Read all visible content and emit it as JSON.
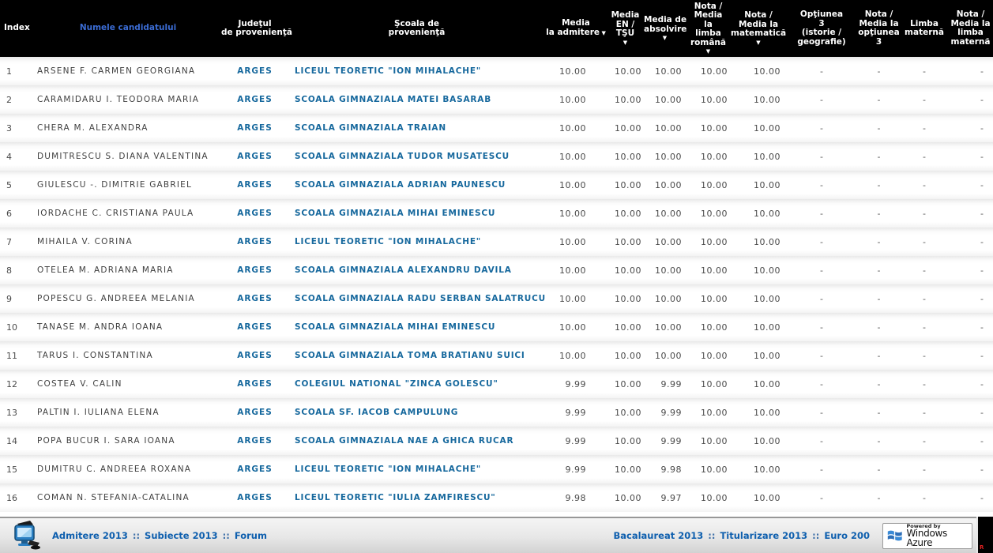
{
  "colors": {
    "header_bg": "#000000",
    "header_text": "#ffffff",
    "name_link": "#3b6cd4",
    "data_link": "#16689d",
    "footer_link": "#0e5fae",
    "row_text": "#4a4a4a"
  },
  "table": {
    "columns": [
      {
        "key": "index",
        "label": "Index",
        "lines": [
          "Index"
        ],
        "arrow": null,
        "link": false,
        "sortable": false
      },
      {
        "key": "name",
        "label": "Numele candidatului",
        "lines": [
          "Numele candidatului"
        ],
        "arrow": null,
        "link": true,
        "sortable": true
      },
      {
        "key": "county",
        "label": "Judeţul de provenienţă",
        "lines": [
          "Judeţul",
          "de provenienţă"
        ],
        "arrow": null,
        "link": false,
        "sortable": false
      },
      {
        "key": "school",
        "label": "Şcoala de provenienţă",
        "lines": [
          "Şcoala de",
          "provenienţă"
        ],
        "arrow": null,
        "link": false,
        "sortable": false
      },
      {
        "key": "media_admitere",
        "label": "Media la admitere",
        "lines": [
          "Media",
          "la admitere"
        ],
        "arrow": "inline",
        "link": false,
        "sortable": true
      },
      {
        "key": "media_en",
        "label": "Media EN / TŞU",
        "lines": [
          "Media",
          "EN /",
          "TŞU"
        ],
        "arrow": "below",
        "link": false,
        "sortable": true
      },
      {
        "key": "media_absolvire",
        "label": "Media de absolvire",
        "lines": [
          "Media de",
          "absolvire"
        ],
        "arrow": "below",
        "link": false,
        "sortable": true
      },
      {
        "key": "nota_romana",
        "label": "Nota / Media la limba română",
        "lines": [
          "Nota /",
          "Media",
          "la",
          "limba",
          "română"
        ],
        "arrow": "below",
        "link": false,
        "sortable": true
      },
      {
        "key": "nota_matematica",
        "label": "Nota / Media la matematică",
        "lines": [
          "Nota /",
          "Media la",
          "matematică"
        ],
        "arrow": "below",
        "link": false,
        "sortable": true
      },
      {
        "key": "optiunea3",
        "label": "Opţiunea 3 (istorie / geografie)",
        "lines": [
          "Opţiunea",
          "3",
          "(istorie /",
          "geografie)"
        ],
        "arrow": null,
        "link": false,
        "sortable": false
      },
      {
        "key": "nota_optiunea3",
        "label": "Nota / Media la opţiunea 3",
        "lines": [
          "Nota /",
          "Media la",
          "opţiunea",
          "3"
        ],
        "arrow": null,
        "link": false,
        "sortable": false
      },
      {
        "key": "limba_materna",
        "label": "Limba maternă",
        "lines": [
          "Limba",
          "maternă"
        ],
        "arrow": null,
        "link": false,
        "sortable": false
      },
      {
        "key": "nota_materna",
        "label": "Nota / Media la limba maternă",
        "lines": [
          "Nota /",
          "Media la",
          "limba",
          "maternă"
        ],
        "arrow": null,
        "link": false,
        "sortable": false
      }
    ],
    "rows": [
      {
        "index": "1",
        "name": "ARSENE F. CARMEN GEORGIANA",
        "county": "ARGES",
        "school": "LICEUL TEORETIC \"ION MIHALACHE\"",
        "scores": [
          "10.00",
          "10.00",
          "10.00",
          "10.00",
          "10.00"
        ],
        "extras": [
          "-",
          "-",
          "-",
          "-"
        ]
      },
      {
        "index": "2",
        "name": "CARAMIDARU I. TEODORA MARIA",
        "county": "ARGES",
        "school": "SCOALA GIMNAZIALA MATEI BASARAB",
        "scores": [
          "10.00",
          "10.00",
          "10.00",
          "10.00",
          "10.00"
        ],
        "extras": [
          "-",
          "-",
          "-",
          "-"
        ]
      },
      {
        "index": "3",
        "name": "CHERA M. ALEXANDRA",
        "county": "ARGES",
        "school": "SCOALA GIMNAZIALA TRAIAN",
        "scores": [
          "10.00",
          "10.00",
          "10.00",
          "10.00",
          "10.00"
        ],
        "extras": [
          "-",
          "-",
          "-",
          "-"
        ]
      },
      {
        "index": "4",
        "name": "DUMITRESCU S. DIANA VALENTINA",
        "county": "ARGES",
        "school": "SCOALA GIMNAZIALA TUDOR MUSATESCU",
        "scores": [
          "10.00",
          "10.00",
          "10.00",
          "10.00",
          "10.00"
        ],
        "extras": [
          "-",
          "-",
          "-",
          "-"
        ]
      },
      {
        "index": "5",
        "name": "GIULESCU -. DIMITRIE GABRIEL",
        "county": "ARGES",
        "school": "SCOALA GIMNAZIALA ADRIAN PAUNESCU",
        "scores": [
          "10.00",
          "10.00",
          "10.00",
          "10.00",
          "10.00"
        ],
        "extras": [
          "-",
          "-",
          "-",
          "-"
        ]
      },
      {
        "index": "6",
        "name": "IORDACHE C. CRISTIANA PAULA",
        "county": "ARGES",
        "school": "SCOALA GIMNAZIALA MIHAI EMINESCU",
        "scores": [
          "10.00",
          "10.00",
          "10.00",
          "10.00",
          "10.00"
        ],
        "extras": [
          "-",
          "-",
          "-",
          "-"
        ]
      },
      {
        "index": "7",
        "name": "MIHAILA V. CORINA",
        "county": "ARGES",
        "school": "LICEUL TEORETIC \"ION MIHALACHE\"",
        "scores": [
          "10.00",
          "10.00",
          "10.00",
          "10.00",
          "10.00"
        ],
        "extras": [
          "-",
          "-",
          "-",
          "-"
        ]
      },
      {
        "index": "8",
        "name": "OTELEA M. ADRIANA MARIA",
        "county": "ARGES",
        "school": "SCOALA GIMNAZIALA ALEXANDRU DAVILA",
        "scores": [
          "10.00",
          "10.00",
          "10.00",
          "10.00",
          "10.00"
        ],
        "extras": [
          "-",
          "-",
          "-",
          "-"
        ]
      },
      {
        "index": "9",
        "name": "POPESCU G. ANDREEA MELANIA",
        "county": "ARGES",
        "school": "SCOALA GIMNAZIALA RADU SERBAN SALATRUCU",
        "scores": [
          "10.00",
          "10.00",
          "10.00",
          "10.00",
          "10.00"
        ],
        "extras": [
          "-",
          "-",
          "-",
          "-"
        ]
      },
      {
        "index": "10",
        "name": "TANASE M. ANDRA IOANA",
        "county": "ARGES",
        "school": "SCOALA GIMNAZIALA MIHAI EMINESCU",
        "scores": [
          "10.00",
          "10.00",
          "10.00",
          "10.00",
          "10.00"
        ],
        "extras": [
          "-",
          "-",
          "-",
          "-"
        ]
      },
      {
        "index": "11",
        "name": "TARUS I. CONSTANTINA",
        "county": "ARGES",
        "school": "SCOALA GIMNAZIALA TOMA BRATIANU SUICI",
        "scores": [
          "10.00",
          "10.00",
          "10.00",
          "10.00",
          "10.00"
        ],
        "extras": [
          "-",
          "-",
          "-",
          "-"
        ]
      },
      {
        "index": "12",
        "name": "COSTEA V. CALIN",
        "county": "ARGES",
        "school": "COLEGIUL NATIONAL \"ZINCA GOLESCU\"",
        "scores": [
          "9.99",
          "10.00",
          "9.99",
          "10.00",
          "10.00"
        ],
        "extras": [
          "-",
          "-",
          "-",
          "-"
        ]
      },
      {
        "index": "13",
        "name": "PALTIN I. IULIANA ELENA",
        "county": "ARGES",
        "school": "SCOALA SF. IACOB CAMPULUNG",
        "scores": [
          "9.99",
          "10.00",
          "9.99",
          "10.00",
          "10.00"
        ],
        "extras": [
          "-",
          "-",
          "-",
          "-"
        ]
      },
      {
        "index": "14",
        "name": "POPA BUCUR I. SARA IOANA",
        "county": "ARGES",
        "school": "SCOALA GIMNAZIALA NAE A GHICA RUCAR",
        "scores": [
          "9.99",
          "10.00",
          "9.99",
          "10.00",
          "10.00"
        ],
        "extras": [
          "-",
          "-",
          "-",
          "-"
        ]
      },
      {
        "index": "15",
        "name": "DUMITRU C. ANDREEA ROXANA",
        "county": "ARGES",
        "school": "LICEUL TEORETIC \"ION MIHALACHE\"",
        "scores": [
          "9.99",
          "10.00",
          "9.98",
          "10.00",
          "10.00"
        ],
        "extras": [
          "-",
          "-",
          "-",
          "-"
        ]
      },
      {
        "index": "16",
        "name": "COMAN N. STEFANIA-CATALINA",
        "county": "ARGES",
        "school": "LICEUL TEORETIC \"IULIA ZAMFIRESCU\"",
        "scores": [
          "9.98",
          "10.00",
          "9.97",
          "10.00",
          "10.00"
        ],
        "extras": [
          "-",
          "-",
          "-",
          "-"
        ]
      }
    ]
  },
  "footer": {
    "separator": "::",
    "left_links": [
      "Admitere 2013",
      "Subiecte 2013",
      "Forum"
    ],
    "right_links": [
      "Bacalaureat 2013",
      "Titularizare 2013",
      "Euro 200"
    ],
    "azure_badge": {
      "line1": "Powered by",
      "line2": "Windows Azure"
    },
    "counter_text": "R"
  }
}
